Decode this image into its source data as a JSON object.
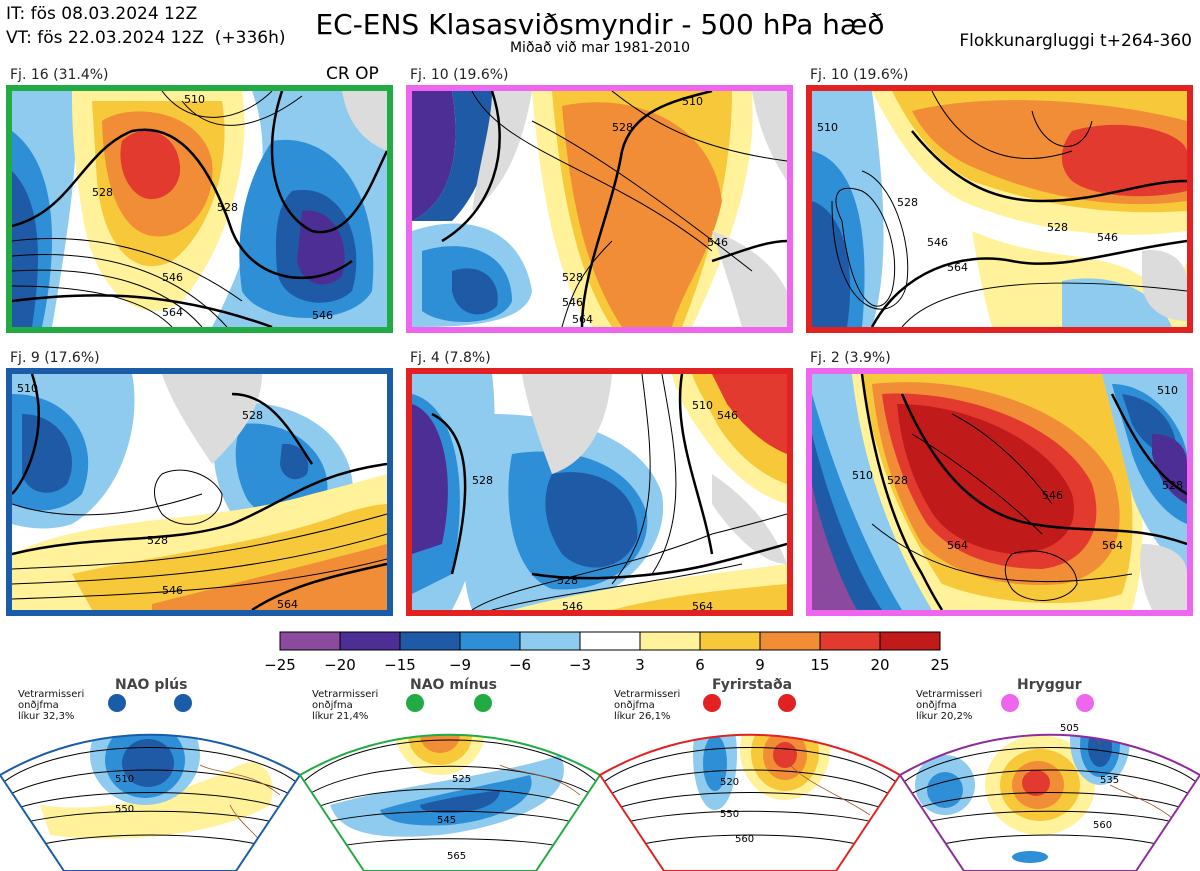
{
  "header": {
    "it_line": "IT: fös 08.03.2024 12Z",
    "vt_line": "VT: fös 22.03.2024 12Z  (+336h)",
    "title": "EC-ENS Klasasviðsmyndir - 500 hPa hæð",
    "subtitle": "Miðað við mar 1981-2010",
    "window": "Flokkunargluggi t+264-360"
  },
  "cr_op_label": "CR OP",
  "panels": [
    {
      "label": "Fj. 16 (31.4%)",
      "border": "#22aa44"
    },
    {
      "label": "Fj. 10 (19.6%)",
      "border": "#ee66ee"
    },
    {
      "label": "Fj. 10 (19.6%)",
      "border": "#e22222"
    },
    {
      "label": "Fj. 9 (17.6%)",
      "border": "#1a5ca8"
    },
    {
      "label": "Fj. 4 (7.8%)",
      "border": "#e22222"
    },
    {
      "label": "Fj. 2 (3.9%)",
      "border": "#ee66ee"
    }
  ],
  "chart_data": {
    "type": "heatmap",
    "title": "EC-ENS Klasasviðsmyndir - 500 hPa hæð",
    "colorbar": {
      "ticks": [
        "−25",
        "−20",
        "−15",
        "−9",
        "−6",
        "−3",
        "3",
        "6",
        "9",
        "15",
        "20",
        "25"
      ],
      "colors": [
        "#8c4a9e",
        "#4d2e94",
        "#1f5aa6",
        "#2e8fd6",
        "#8ecbee",
        "#ffffff",
        "#fff29a",
        "#f7c93a",
        "#f08d36",
        "#e23a2e",
        "#c01a1a"
      ]
    },
    "contour_labels": {
      "p1": [
        "510",
        "528",
        "528",
        "546",
        "564",
        "546"
      ],
      "p2": [
        "510",
        "528",
        "546",
        "528",
        "546",
        "564"
      ],
      "p3": [
        "510",
        "528",
        "546",
        "528",
        "564",
        "546"
      ],
      "p4": [
        "510",
        "528",
        "528",
        "546",
        "564"
      ],
      "p5": [
        "510",
        "546",
        "528",
        "528",
        "546",
        "564"
      ],
      "p6": [
        "510",
        "528",
        "546",
        "564",
        "564",
        "510",
        "528"
      ]
    }
  },
  "regimes": [
    {
      "name": "NAO plús",
      "text": "Vetrarmisseri\nonðjfma\nlíkur 32,3%",
      "color": "#1a5ca8",
      "labels": [
        "510",
        "550"
      ]
    },
    {
      "name": "NAO mínus",
      "text": "Vetrarmisseri\nonðjfma\nlíkur 21,4%",
      "color": "#22aa44",
      "labels": [
        "525",
        "545",
        "565"
      ]
    },
    {
      "name": "Fyrirstaða",
      "text": "Vetrarmisseri\nonðjfma\nlíkur 26,1%",
      "color": "#e22222",
      "labels": [
        "520",
        "550",
        "560"
      ]
    },
    {
      "name": "Hryggur",
      "text": "Vetrarmisseri\nonðjfma\nlíkur 20,2%",
      "color": "#ee66ee",
      "labels": [
        "505",
        "535",
        "560"
      ]
    }
  ]
}
